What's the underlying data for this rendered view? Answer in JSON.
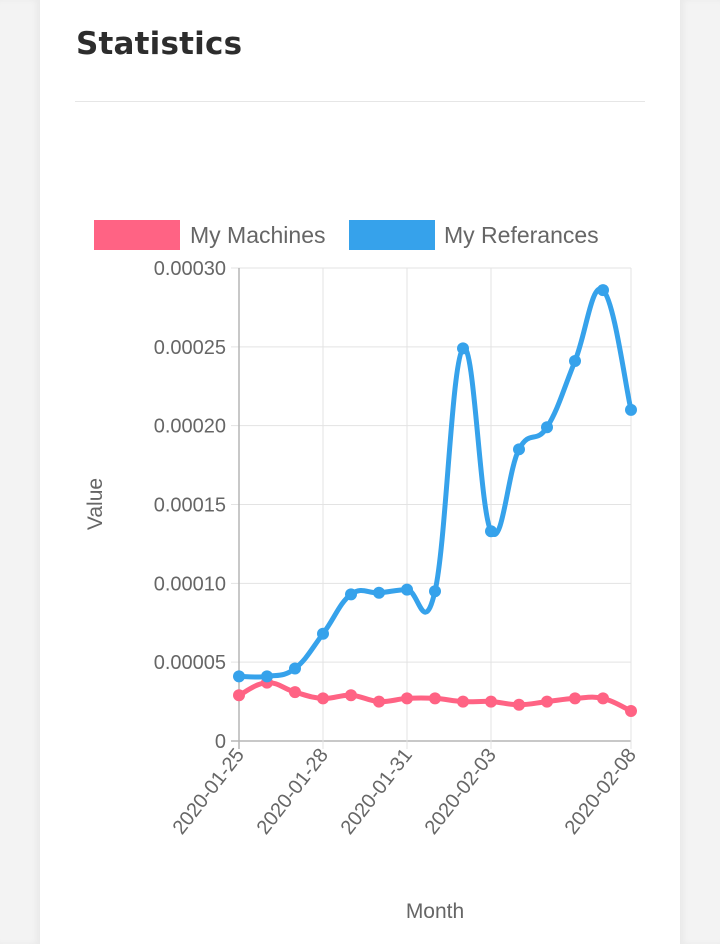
{
  "card": {
    "title": "Statistics"
  },
  "chart_data": {
    "type": "line",
    "title": "",
    "xlabel": "Month",
    "ylabel": "Value",
    "ylim": [
      0,
      0.0003
    ],
    "yticks": [
      "0.00030",
      "0.00025",
      "0.00020",
      "0.00015",
      "0.00010",
      "0.00005",
      "0"
    ],
    "ytick_values": [
      0.0003,
      0.00025,
      0.0002,
      0.00015,
      0.0001,
      5e-05,
      0
    ],
    "x": [
      "2020-01-25",
      "2020-01-26",
      "2020-01-27",
      "2020-01-28",
      "2020-01-29",
      "2020-01-30",
      "2020-01-31",
      "2020-02-01",
      "2020-02-02",
      "2020-02-03",
      "2020-02-04",
      "2020-02-05",
      "2020-02-06",
      "2020-02-07",
      "2020-02-08"
    ],
    "xtick_labels": [
      "2020-01-25",
      "2020-01-28",
      "2020-01-31",
      "2020-02-03",
      "2020-02-08"
    ],
    "xtick_indices": [
      0,
      3,
      6,
      9,
      14
    ],
    "grid": true,
    "legend_position": "top",
    "series": [
      {
        "name": "My Machines",
        "color": "#ff6384",
        "values": [
          2.9e-05,
          3.7e-05,
          3.1e-05,
          2.7e-05,
          2.9e-05,
          2.5e-05,
          2.7e-05,
          2.7e-05,
          2.5e-05,
          2.5e-05,
          2.3e-05,
          2.5e-05,
          2.7e-05,
          2.7e-05,
          1.9e-05
        ]
      },
      {
        "name": "My Referances",
        "color": "#36a2eb",
        "values": [
          4.1e-05,
          4.1e-05,
          4.6e-05,
          6.8e-05,
          9.3e-05,
          9.4e-05,
          9.6e-05,
          9.5e-05,
          0.000249,
          0.000133,
          0.000185,
          0.000199,
          0.000241,
          0.000286,
          0.00021
        ]
      }
    ]
  }
}
